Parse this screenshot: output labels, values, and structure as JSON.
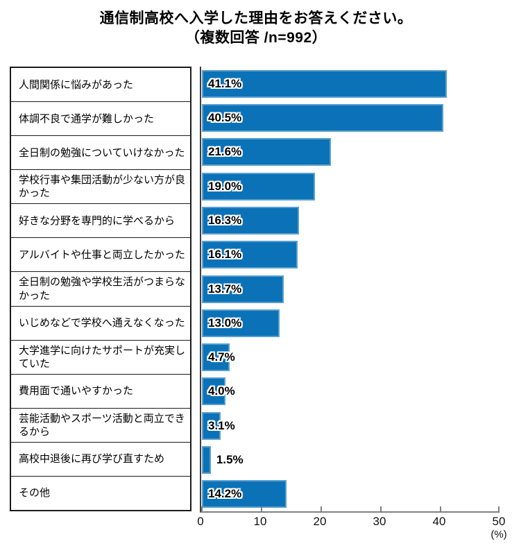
{
  "chart_data": {
    "type": "bar",
    "orientation": "horizontal",
    "title": "通信制高校へ入学した理由をお答えください。",
    "subtitle": "（複数回答 /n=992）",
    "n_respondents": 992,
    "categories": [
      "人間関係に悩みがあった",
      "体調不良で通学が難しかった",
      "全日制の勉強についていけなかった",
      "学校行事や集団活動が少ない方が良かった",
      "好きな分野を専門的に学べるから",
      "アルバイトや仕事と両立したかった",
      "全日制の勉強や学校生活がつまらなかった",
      "いじめなどで学校へ通えなくなった",
      "大学進学に向けたサポートが充実していた",
      "費用面で通いやすかった",
      "芸能活動やスポーツ活動と両立できるから",
      "高校中退後に再び学び直すため",
      "その他"
    ],
    "values": [
      41.1,
      40.5,
      21.6,
      19.0,
      16.3,
      16.1,
      13.7,
      13.0,
      4.7,
      4.0,
      3.1,
      1.5,
      14.2
    ],
    "value_labels": [
      "41.1%",
      "40.5%",
      "21.6%",
      "19.0%",
      "16.3%",
      "16.1%",
      "13.7%",
      "13.0%",
      "4.7%",
      "4.0%",
      "3.1%",
      "1.5%",
      "14.2%"
    ],
    "xlim": [
      0,
      50
    ],
    "xticks": [
      "0",
      "10",
      "20",
      "30",
      "40",
      "50"
    ],
    "x_unit": "(%)",
    "grid": false,
    "legend": false,
    "bar_color": "#0b72b8"
  },
  "colors": {
    "bar": "#0b72b8",
    "axis_vertical": "#3d3d3d",
    "axis_horizontal": "#7f7f7f",
    "table_border": "#1a1a1a",
    "text": "#000000",
    "background": "#ffffff"
  }
}
